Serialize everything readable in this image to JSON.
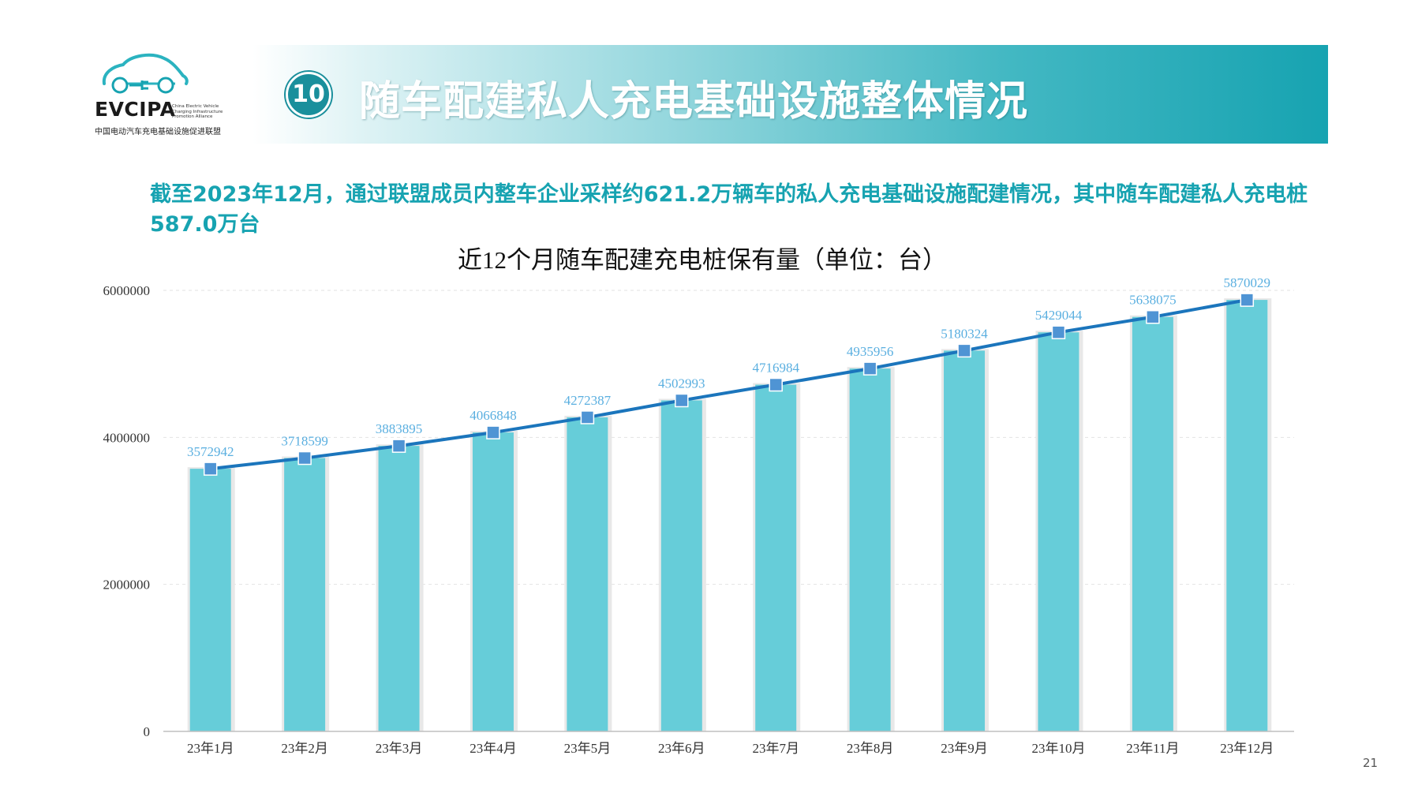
{
  "logo": {
    "abbr": "EVCIPA",
    "en": "China Electric Vehicle Charging Infrastructure Promotion Alliance",
    "cn": "中国电动汽车充电基础设施促进联盟"
  },
  "section": {
    "number": "10",
    "title": "随车配建私人充电基础设施整体情况"
  },
  "summary": "截至2023年12月，通过联盟成员内整车企业采样约621.2万辆车的私人充电基础设施配建情况，其中随车配建私人充电桩587.0万台",
  "page_number": "21",
  "colors": {
    "bar": "#66cdd9",
    "line": "#1b75bc",
    "marker": "#4f94d4",
    "label": "#5aafe0",
    "accent": "#17a3b1"
  },
  "chart_data": {
    "type": "bar",
    "title": "近12个月随车配建充电桩保有量（单位：台）",
    "categories": [
      "23年1月",
      "23年2月",
      "23年3月",
      "23年4月",
      "23年5月",
      "23年6月",
      "23年7月",
      "23年8月",
      "23年9月",
      "23年10月",
      "23年11月",
      "23年12月"
    ],
    "values": [
      3572942,
      3718599,
      3883895,
      4066848,
      4272387,
      4502993,
      4716984,
      4935956,
      5180324,
      5429044,
      5638075,
      5870029
    ],
    "y_ticks": [
      0,
      2000000,
      4000000,
      6000000
    ],
    "ylim": [
      0,
      6000000
    ],
    "overlay": "line with square markers over the same values",
    "data_labels": true,
    "grid": "horizontal dashed",
    "legend": "none"
  }
}
